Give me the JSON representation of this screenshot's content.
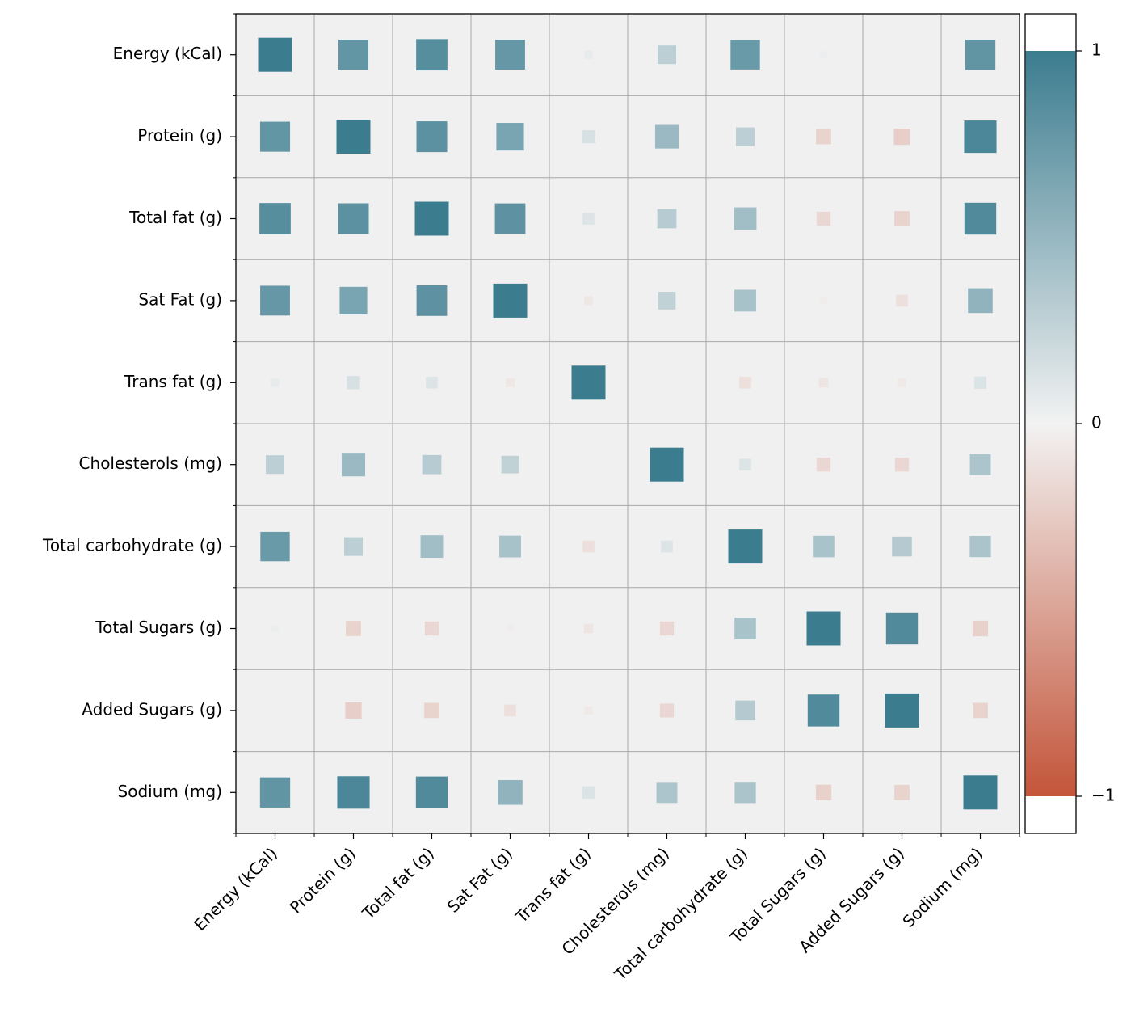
{
  "chart_data": {
    "type": "heatmap",
    "rows": [
      "Energy (kCal)",
      "Protein (g)",
      "Total fat (g)",
      "Sat Fat (g)",
      "Trans fat (g)",
      "Cholesterols (mg)",
      "Total carbohydrate (g)",
      "Total Sugars (g)",
      "Added Sugars (g)",
      "Sodium (mg)"
    ],
    "columns": [
      "Energy (kCal)",
      "Protein (g)",
      "Total fat (g)",
      "Sat Fat (g)",
      "Trans fat (g)",
      "Cholesterols (mg)",
      "Total carbohydrate (g)",
      "Total Sugars (g)",
      "Added Sugars (g)",
      "Sodium (mg)"
    ],
    "values": [
      [
        1.0,
        0.78,
        0.85,
        0.77,
        0.06,
        0.3,
        0.75,
        0.04,
        0.0,
        0.79
      ],
      [
        0.78,
        1.0,
        0.82,
        0.66,
        0.15,
        0.48,
        0.3,
        -0.2,
        -0.23,
        0.91
      ],
      [
        0.85,
        0.82,
        1.0,
        0.81,
        0.12,
        0.32,
        0.44,
        -0.17,
        -0.2,
        0.88
      ],
      [
        0.77,
        0.66,
        0.81,
        1.0,
        -0.07,
        0.27,
        0.41,
        -0.04,
        -0.12,
        0.53
      ],
      [
        0.06,
        0.15,
        0.12,
        -0.07,
        1.0,
        -0.02,
        -0.12,
        -0.08,
        -0.06,
        0.13
      ],
      [
        0.3,
        0.48,
        0.32,
        0.27,
        -0.02,
        1.0,
        0.12,
        -0.17,
        -0.17,
        0.38
      ],
      [
        0.75,
        0.3,
        0.44,
        0.41,
        -0.12,
        0.12,
        1.0,
        0.4,
        0.34,
        0.39
      ],
      [
        0.04,
        -0.2,
        -0.17,
        -0.04,
        -0.08,
        -0.17,
        0.4,
        1.0,
        0.88,
        -0.21
      ],
      [
        0.0,
        -0.23,
        -0.2,
        -0.12,
        -0.06,
        -0.17,
        0.34,
        0.88,
        1.0,
        -0.2
      ],
      [
        0.79,
        0.91,
        0.88,
        0.53,
        0.13,
        0.38,
        0.39,
        -0.21,
        -0.2,
        1.0
      ]
    ],
    "colorbar": {
      "range": [
        -1,
        1
      ],
      "ticks": [
        1,
        0,
        -1
      ],
      "tick_labels": [
        "1",
        "0",
        "−1"
      ],
      "low_color": "#c3553a",
      "mid_color": "#f2f2f2",
      "high_color": "#3b7c8f"
    },
    "cell_background": "#f0f0f0",
    "grid_color": "#a8a8a8",
    "grid": true,
    "marker": "square sized by absolute correlation",
    "title": "",
    "xlabel": "",
    "ylabel": ""
  }
}
